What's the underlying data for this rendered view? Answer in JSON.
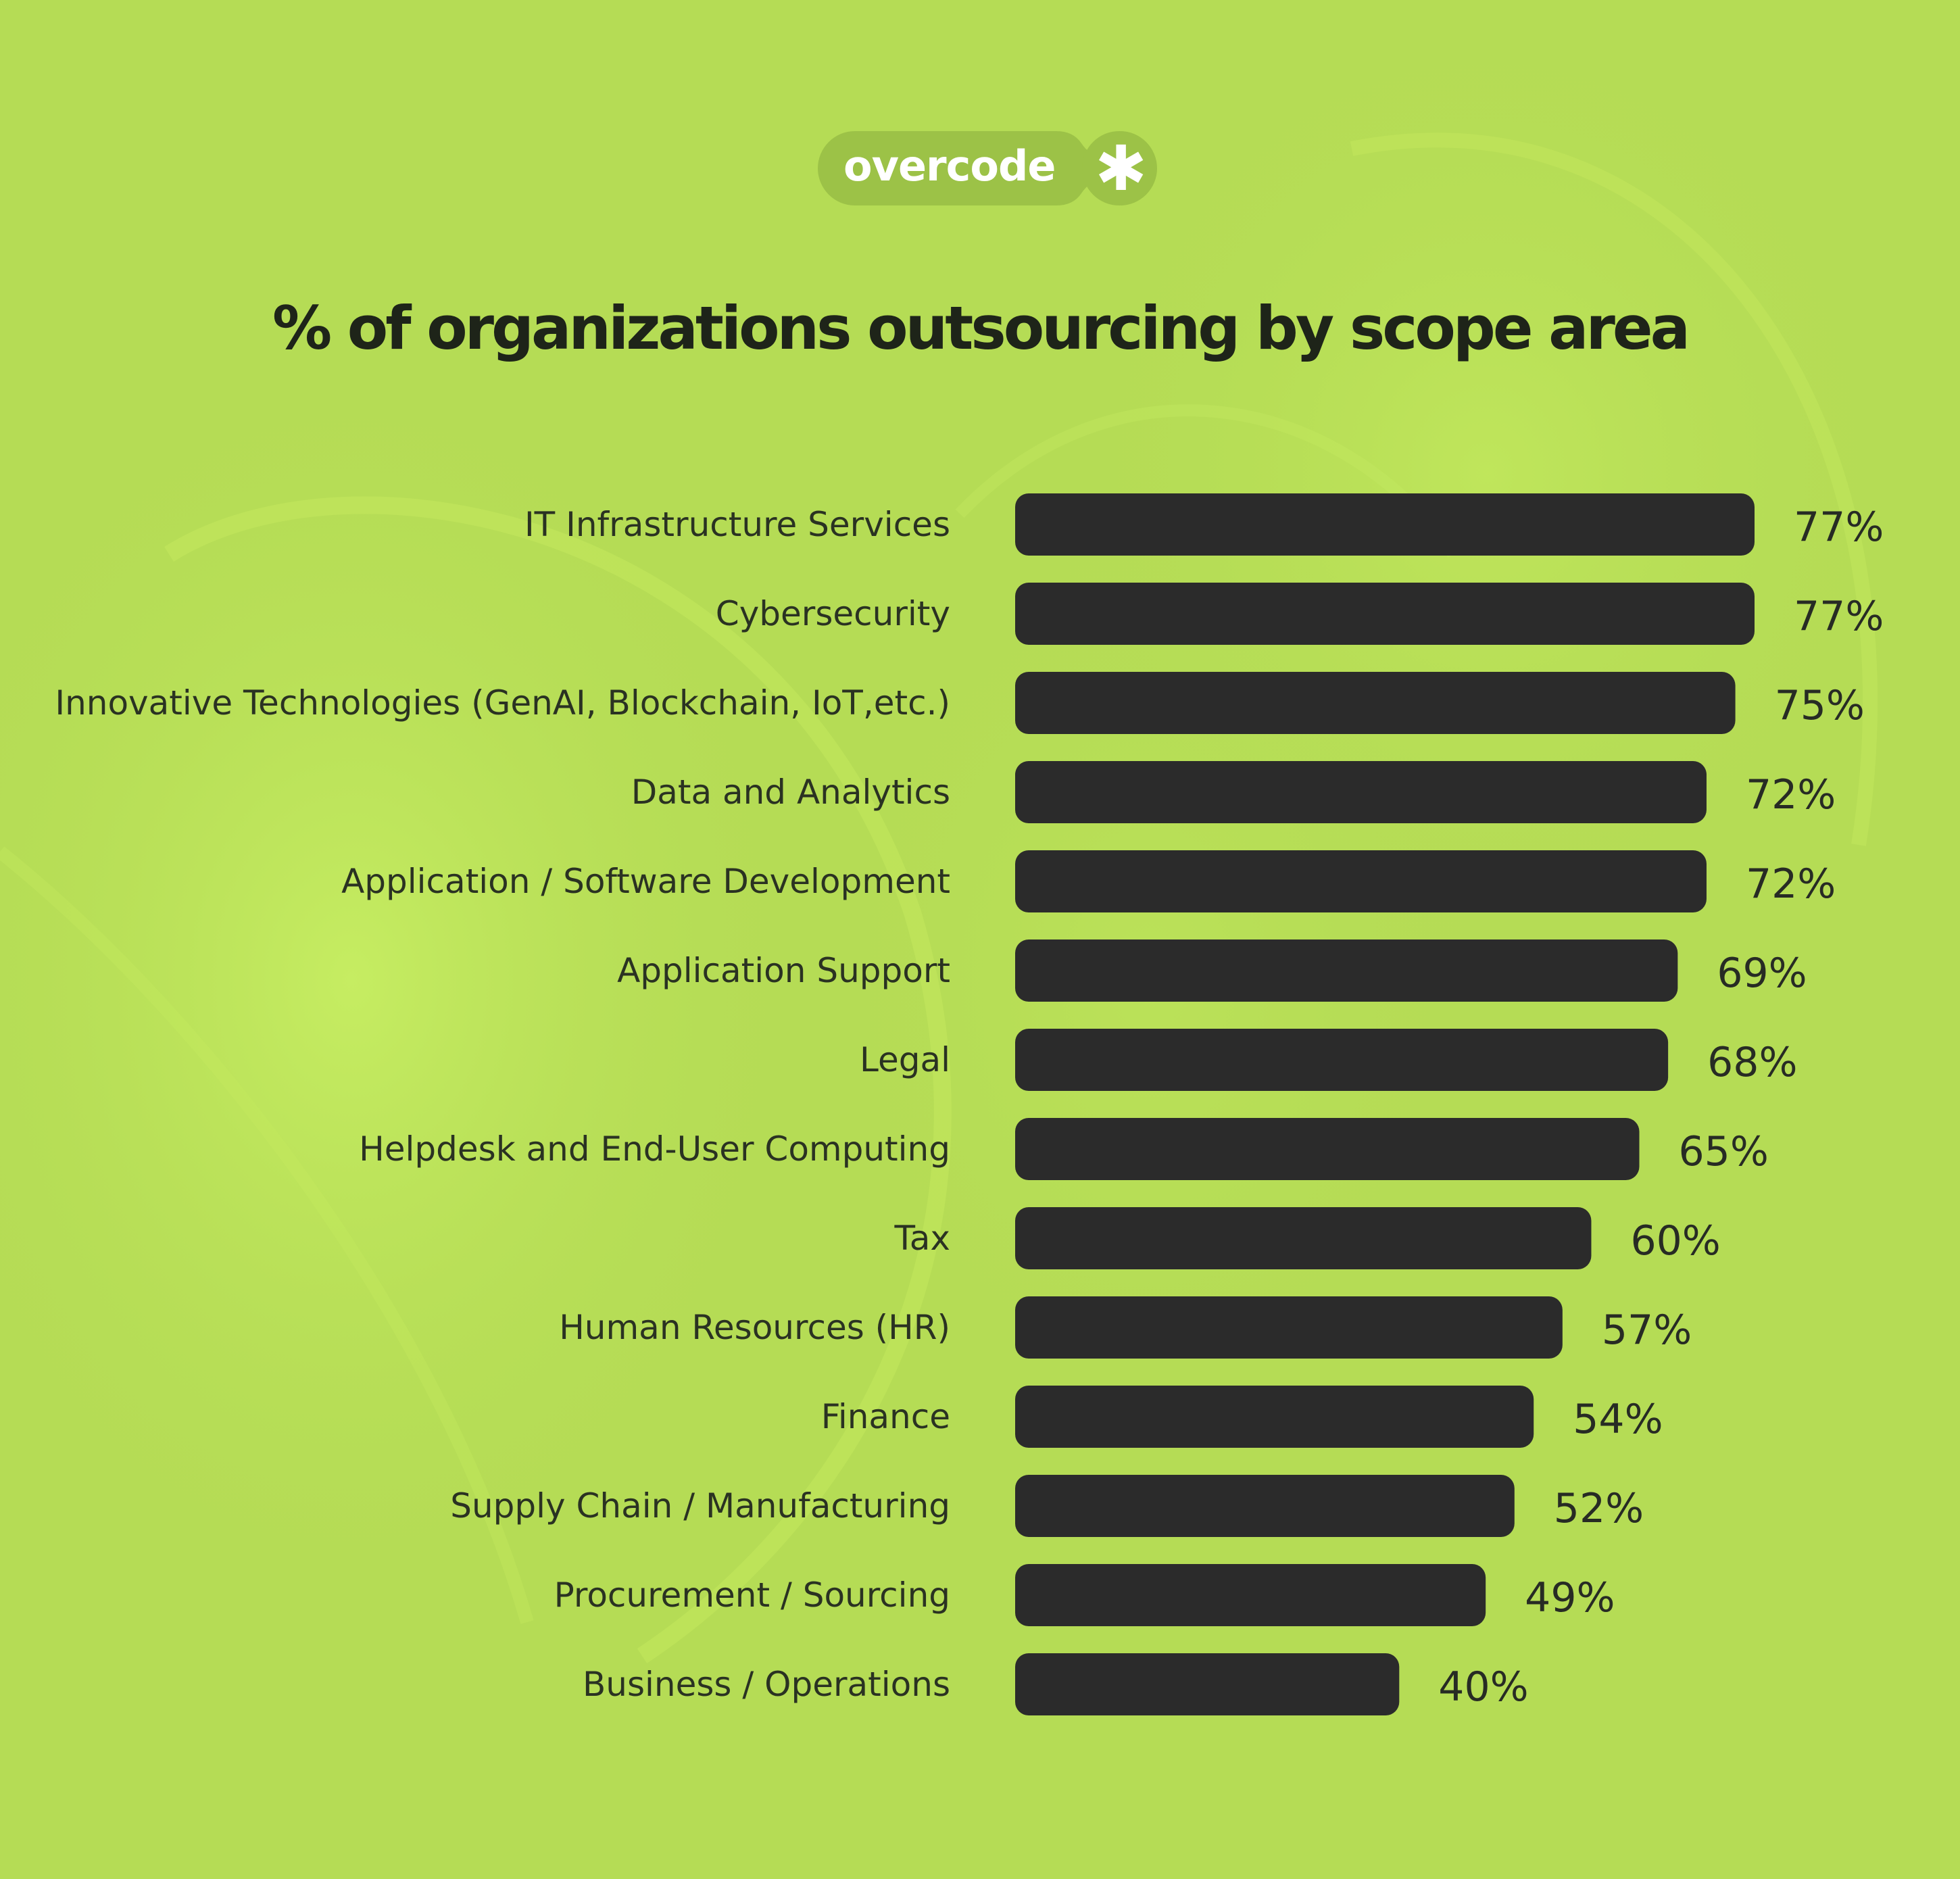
{
  "brand": {
    "name": "overcode",
    "icon": "asterisk-icon"
  },
  "colors": {
    "background": "#b5dc55",
    "bar": "#2b2b2b",
    "pill": "#9fc44a",
    "text": "#1e2419"
  },
  "chart_data": {
    "type": "bar",
    "orientation": "horizontal",
    "title": "% of organizations outsourcing by scope area",
    "xlabel": "",
    "ylabel": "",
    "xlim": [
      0,
      77
    ],
    "grid": false,
    "legend": "none",
    "categories": [
      "IT Infrastructure Services",
      "Cybersecurity",
      "Innovative Technologies (GenAI, Blockchain, IoT,etc.)",
      "Data and Analytics",
      "Application / Software Development",
      "Application Support",
      "Legal",
      "Helpdesk and End-User Computing",
      "Tax",
      "Human Resources (HR)",
      "Finance",
      "Supply Chain / Manufacturing",
      "Procurement / Sourcing",
      "Business / Operations"
    ],
    "values": [
      77,
      77,
      75,
      72,
      72,
      69,
      68,
      65,
      60,
      57,
      54,
      52,
      49,
      40
    ],
    "value_labels": [
      "77%",
      "77%",
      "75%",
      "72%",
      "72%",
      "69%",
      "68%",
      "65%",
      "60%",
      "57%",
      "54%",
      "52%",
      "49%",
      "40%"
    ]
  }
}
